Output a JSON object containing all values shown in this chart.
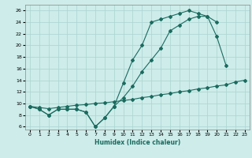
{
  "xlabel": "Humidex (Indice chaleur)",
  "bg_color": "#cdecea",
  "grid_color": "#aad4d0",
  "line_color": "#1a6b5e",
  "line1_x": [
    0,
    1,
    2,
    3,
    4,
    5,
    6,
    7,
    8,
    9,
    10,
    11,
    12,
    13,
    14,
    15,
    16,
    17,
    18,
    19,
    20,
    21
  ],
  "line1_y": [
    9.5,
    9.0,
    8.0,
    9.0,
    9.0,
    9.0,
    8.5,
    6.0,
    7.5,
    9.5,
    13.5,
    17.5,
    20.0,
    24.0,
    24.5,
    25.0,
    25.5,
    26.0,
    25.5,
    25.0,
    21.5,
    16.5
  ],
  "line2_x": [
    0,
    1,
    2,
    3,
    4,
    5,
    6,
    7,
    8,
    9,
    10,
    11,
    12,
    13,
    14,
    15,
    16,
    17,
    18,
    19,
    20
  ],
  "line2_y": [
    9.5,
    9.0,
    8.0,
    9.0,
    9.0,
    9.0,
    8.5,
    6.0,
    7.5,
    9.5,
    11.0,
    13.0,
    15.5,
    17.5,
    19.5,
    22.5,
    23.5,
    24.5,
    25.0,
    25.0,
    24.0
  ],
  "line3_x": [
    0,
    1,
    2,
    3,
    4,
    5,
    6,
    7,
    8,
    9,
    10,
    11,
    12,
    13,
    14,
    15,
    16,
    17,
    18,
    19,
    20,
    21,
    22,
    23
  ],
  "line3_y": [
    9.5,
    9.3,
    9.1,
    9.3,
    9.5,
    9.7,
    9.8,
    10.0,
    10.1,
    10.3,
    10.5,
    10.7,
    11.0,
    11.2,
    11.5,
    11.7,
    12.0,
    12.2,
    12.5,
    12.7,
    13.0,
    13.2,
    13.7,
    14.0
  ],
  "xlim": [
    -0.5,
    23.5
  ],
  "ylim": [
    5.5,
    27.0
  ],
  "xticks": [
    0,
    1,
    2,
    3,
    4,
    5,
    6,
    7,
    8,
    9,
    10,
    11,
    12,
    13,
    14,
    15,
    16,
    17,
    18,
    19,
    20,
    21,
    22,
    23
  ],
  "yticks": [
    6,
    8,
    10,
    12,
    14,
    16,
    18,
    20,
    22,
    24,
    26
  ]
}
